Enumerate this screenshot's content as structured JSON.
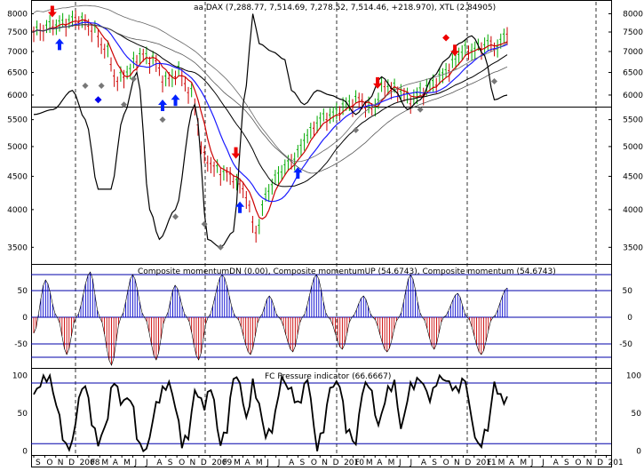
{
  "chart_data": [
    {
      "type": "line",
      "title": "aa DAX (7,288.77, 7,514.69, 7,278.52, 7,514.46, +218.970), XTL (2.84905)",
      "y_ticks": [
        "3500",
        "4000",
        "4500",
        "5000",
        "5500",
        "6000",
        "6500",
        "7000",
        "7500",
        "8000"
      ],
      "y_tick_values": [
        3500,
        4000,
        4500,
        5000,
        5500,
        6000,
        6500,
        7000,
        7500,
        8000
      ],
      "ylim": [
        3300,
        8400
      ],
      "y_scale": "log",
      "horizontal_line": 5750,
      "price_anchors": [
        [
          0,
          7500
        ],
        [
          7,
          7700
        ],
        [
          14,
          7850
        ],
        [
          18,
          7600
        ],
        [
          22,
          7100
        ],
        [
          26,
          6300
        ],
        [
          29,
          6500
        ],
        [
          33,
          6900
        ],
        [
          37,
          6800
        ],
        [
          41,
          6300
        ],
        [
          45,
          6500
        ],
        [
          49,
          6000
        ],
        [
          53,
          4800
        ],
        [
          57,
          4600
        ],
        [
          61,
          4500
        ],
        [
          65,
          4300
        ],
        [
          69,
          3700
        ],
        [
          73,
          4300
        ],
        [
          77,
          4600
        ],
        [
          81,
          4800
        ],
        [
          85,
          5200
        ],
        [
          89,
          5500
        ],
        [
          93,
          5600
        ],
        [
          97,
          5800
        ],
        [
          101,
          5900
        ],
        [
          105,
          5700
        ],
        [
          109,
          6200
        ],
        [
          113,
          6100
        ],
        [
          117,
          5900
        ],
        [
          121,
          6100
        ],
        [
          125,
          6300
        ],
        [
          129,
          6600
        ],
        [
          133,
          7000
        ],
        [
          137,
          7050
        ],
        [
          141,
          7200
        ],
        [
          144,
          7100
        ],
        [
          147,
          7514
        ]
      ],
      "bollinger_anchors": [
        [
          0,
          5600
        ],
        [
          6,
          5700
        ],
        [
          12,
          6100
        ],
        [
          16,
          5500
        ],
        [
          20,
          4300
        ],
        [
          24,
          4300
        ],
        [
          28,
          5600
        ],
        [
          32,
          6500
        ],
        [
          36,
          4000
        ],
        [
          39,
          3600
        ],
        [
          44,
          4000
        ],
        [
          50,
          5800
        ],
        [
          54,
          3600
        ],
        [
          58,
          3500
        ],
        [
          62,
          3700
        ],
        [
          66,
          6200
        ],
        [
          68,
          8000
        ],
        [
          70,
          7200
        ],
        [
          74,
          7000
        ],
        [
          78,
          6800
        ],
        [
          80,
          6100
        ],
        [
          84,
          5800
        ],
        [
          88,
          6100
        ],
        [
          92,
          6000
        ],
        [
          96,
          5900
        ],
        [
          100,
          5600
        ],
        [
          104,
          5900
        ],
        [
          108,
          6400
        ],
        [
          112,
          6100
        ],
        [
          116,
          5700
        ],
        [
          120,
          5900
        ],
        [
          124,
          6400
        ],
        [
          128,
          6800
        ],
        [
          132,
          7200
        ],
        [
          136,
          7400
        ],
        [
          140,
          6900
        ],
        [
          143,
          5900
        ],
        [
          147,
          6000
        ]
      ],
      "buy_arrows_x": [
        8,
        40,
        44,
        64,
        82
      ],
      "sell_arrows_x": [
        3,
        60,
        104,
        128
      ],
      "diamond_markers": [
        [
          16,
          6200
        ],
        [
          21,
          6200
        ],
        [
          28,
          5800
        ],
        [
          31,
          6350
        ],
        [
          40,
          5500
        ],
        [
          44,
          3900
        ],
        [
          53,
          3800
        ],
        [
          58,
          3500
        ],
        [
          100,
          5300
        ],
        [
          120,
          5700
        ],
        [
          143,
          6300
        ]
      ],
      "blue_diamond_markers": [
        [
          20,
          5900
        ],
        [
          128,
          7350
        ]
      ]
    },
    {
      "type": "bar",
      "title": "Composite momentumDN (0.00), Composite momentumUP (54.6743), Composite momentum (54.6743)",
      "y_ticks": [
        "-50",
        "0",
        "50"
      ],
      "y_tick_values": [
        -50,
        0,
        50
      ],
      "ylim": [
        -95,
        100
      ],
      "reference_lines": [
        -75,
        -50,
        0,
        50,
        80
      ],
      "wave_anchors": [
        [
          0,
          -30
        ],
        [
          5,
          70
        ],
        [
          10,
          0
        ],
        [
          14,
          -70
        ],
        [
          18,
          0
        ],
        [
          24,
          85
        ],
        [
          28,
          0
        ],
        [
          33,
          -90
        ],
        [
          37,
          0
        ],
        [
          42,
          80
        ],
        [
          47,
          0
        ],
        [
          52,
          -80
        ],
        [
          56,
          0
        ],
        [
          60,
          60
        ],
        [
          65,
          0
        ],
        [
          70,
          -80
        ],
        [
          74,
          0
        ],
        [
          80,
          80
        ],
        [
          86,
          0
        ],
        [
          92,
          -70
        ],
        [
          96,
          0
        ],
        [
          100,
          40
        ],
        [
          104,
          0
        ],
        [
          110,
          -65
        ],
        [
          114,
          0
        ],
        [
          120,
          80
        ],
        [
          125,
          0
        ],
        [
          131,
          -60
        ],
        [
          135,
          0
        ],
        [
          140,
          40
        ],
        [
          144,
          0
        ],
        [
          150,
          -65
        ],
        [
          155,
          0
        ],
        [
          160,
          80
        ],
        [
          165,
          0
        ],
        [
          170,
          -60
        ],
        [
          174,
          0
        ],
        [
          180,
          45
        ],
        [
          184,
          0
        ],
        [
          190,
          -70
        ],
        [
          195,
          0
        ],
        [
          201,
          55
        ]
      ]
    },
    {
      "type": "line",
      "title": "FC Pressure indicator (66.6667)",
      "y_ticks": [
        "0",
        "50",
        "100"
      ],
      "y_tick_values": [
        0,
        50,
        100
      ],
      "ylim": [
        -5,
        110
      ],
      "reference_lines": [
        10,
        90
      ],
      "series_anchors": [
        [
          0,
          75
        ],
        [
          3,
          95
        ],
        [
          5,
          100
        ],
        [
          7,
          60
        ],
        [
          10,
          5
        ],
        [
          12,
          10
        ],
        [
          14,
          70
        ],
        [
          16,
          90
        ],
        [
          18,
          40
        ],
        [
          20,
          10
        ],
        [
          22,
          30
        ],
        [
          25,
          95
        ],
        [
          27,
          65
        ],
        [
          30,
          70
        ],
        [
          33,
          5
        ],
        [
          35,
          2
        ],
        [
          38,
          60
        ],
        [
          40,
          80
        ],
        [
          42,
          90
        ],
        [
          44,
          60
        ],
        [
          46,
          10
        ],
        [
          48,
          20
        ],
        [
          50,
          80
        ],
        [
          53,
          60
        ],
        [
          55,
          85
        ],
        [
          58,
          10
        ],
        [
          60,
          30
        ],
        [
          62,
          100
        ],
        [
          64,
          90
        ],
        [
          66,
          40
        ],
        [
          68,
          90
        ],
        [
          70,
          60
        ],
        [
          72,
          20
        ],
        [
          74,
          30
        ],
        [
          77,
          95
        ],
        [
          80,
          80
        ],
        [
          82,
          60
        ],
        [
          85,
          95
        ],
        [
          88,
          5
        ],
        [
          90,
          30
        ],
        [
          92,
          85
        ],
        [
          95,
          90
        ],
        [
          97,
          30
        ],
        [
          100,
          10
        ],
        [
          102,
          80
        ],
        [
          104,
          90
        ],
        [
          107,
          35
        ],
        [
          110,
          80
        ],
        [
          112,
          90
        ],
        [
          114,
          30
        ],
        [
          117,
          85
        ],
        [
          120,
          95
        ],
        [
          123,
          70
        ],
        [
          126,
          100
        ],
        [
          129,
          90
        ],
        [
          131,
          80
        ],
        [
          134,
          95
        ],
        [
          136,
          40
        ],
        [
          138,
          5
        ],
        [
          141,
          30
        ],
        [
          143,
          90
        ],
        [
          145,
          70
        ],
        [
          147,
          67
        ]
      ]
    },
    {
      "type": "axis",
      "x_labels": [
        "S",
        "O",
        "N",
        "D",
        "2008",
        "F",
        "M",
        "A",
        "M",
        "J",
        "J",
        "A",
        "S",
        "O",
        "N",
        "D",
        "2009",
        "F",
        "M",
        "A",
        "M",
        "J",
        "J",
        "A",
        "S",
        "O",
        "N",
        "D",
        "2010",
        "F",
        "M",
        "A",
        "M",
        "J",
        "J",
        "A",
        "S",
        "O",
        "N",
        "D",
        "2011",
        "F",
        "M",
        "A",
        "M",
        "J",
        "J",
        "A",
        "S",
        "O",
        "N",
        "D",
        "201"
      ],
      "vertical_dashed_after_labels": [
        "D",
        "D",
        "D",
        "D"
      ]
    }
  ]
}
